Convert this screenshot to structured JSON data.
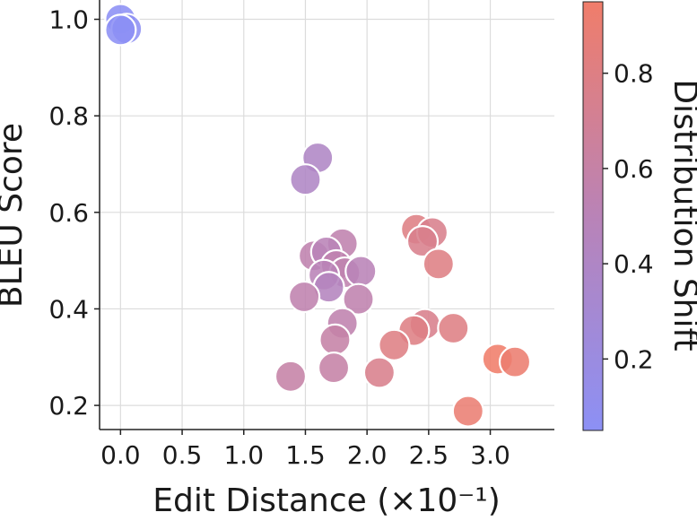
{
  "chart_data": {
    "type": "scatter",
    "title": "",
    "xlabel": "Edit Distance (×10⁻¹)",
    "ylabel": "BLEU Score",
    "xlim": [
      -0.17,
      3.52
    ],
    "ylim": [
      0.15,
      1.04
    ],
    "xticks": [
      "0.0",
      "0.5",
      "1.0",
      "1.5",
      "2.0",
      "2.5",
      "3.0"
    ],
    "yticks": [
      "0.2",
      "0.4",
      "0.6",
      "0.8",
      "1.0"
    ],
    "grid": true,
    "colorbar": {
      "label": "Distribution Shift",
      "range": [
        0.05,
        0.95
      ],
      "ticks": [
        "0.2",
        "0.4",
        "0.6",
        "0.8"
      ],
      "low_color": "#8c90f5",
      "mid_color": "#b983b7",
      "high_color": "#f07d6a"
    },
    "points": [
      {
        "x": 0.0,
        "y": 1.0,
        "c": 0.05
      },
      {
        "x": 0.05,
        "y": 0.98,
        "c": 0.06
      },
      {
        "x": 0.0,
        "y": 0.978,
        "c": 0.05
      },
      {
        "x": 1.6,
        "y": 0.713,
        "c": 0.4
      },
      {
        "x": 1.5,
        "y": 0.668,
        "c": 0.4
      },
      {
        "x": 1.8,
        "y": 0.535,
        "c": 0.55
      },
      {
        "x": 1.57,
        "y": 0.51,
        "c": 0.55
      },
      {
        "x": 1.67,
        "y": 0.518,
        "c": 0.5
      },
      {
        "x": 1.75,
        "y": 0.49,
        "c": 0.55
      },
      {
        "x": 1.82,
        "y": 0.475,
        "c": 0.55
      },
      {
        "x": 1.65,
        "y": 0.47,
        "c": 0.5
      },
      {
        "x": 1.95,
        "y": 0.478,
        "c": 0.5
      },
      {
        "x": 1.69,
        "y": 0.445,
        "c": 0.45
      },
      {
        "x": 1.49,
        "y": 0.425,
        "c": 0.55
      },
      {
        "x": 1.93,
        "y": 0.42,
        "c": 0.55
      },
      {
        "x": 1.8,
        "y": 0.37,
        "c": 0.55
      },
      {
        "x": 1.74,
        "y": 0.336,
        "c": 0.6
      },
      {
        "x": 1.73,
        "y": 0.278,
        "c": 0.6
      },
      {
        "x": 1.38,
        "y": 0.26,
        "c": 0.6
      },
      {
        "x": 2.4,
        "y": 0.565,
        "c": 0.8
      },
      {
        "x": 2.53,
        "y": 0.558,
        "c": 0.75
      },
      {
        "x": 2.45,
        "y": 0.54,
        "c": 0.75
      },
      {
        "x": 2.58,
        "y": 0.493,
        "c": 0.8
      },
      {
        "x": 2.47,
        "y": 0.368,
        "c": 0.75
      },
      {
        "x": 2.38,
        "y": 0.355,
        "c": 0.8
      },
      {
        "x": 2.7,
        "y": 0.36,
        "c": 0.8
      },
      {
        "x": 2.22,
        "y": 0.325,
        "c": 0.8
      },
      {
        "x": 2.1,
        "y": 0.268,
        "c": 0.75
      },
      {
        "x": 3.06,
        "y": 0.296,
        "c": 0.95
      },
      {
        "x": 3.2,
        "y": 0.29,
        "c": 0.92
      },
      {
        "x": 2.82,
        "y": 0.188,
        "c": 0.9
      }
    ]
  }
}
